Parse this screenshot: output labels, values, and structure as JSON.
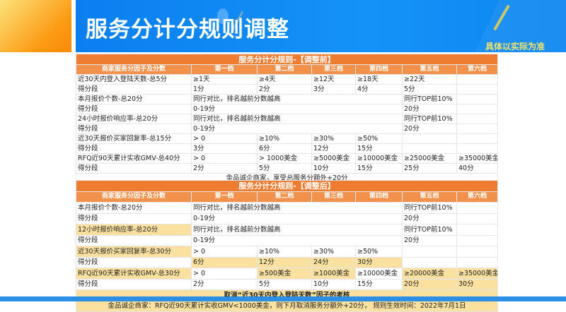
{
  "header": {
    "title": "服务分计分规则调整",
    "note": "具体以实际为准"
  },
  "columns": [
    "商家服务分因子及分数",
    "第一档",
    "第二档",
    "第三档",
    "第四档",
    "第五档",
    "第六档"
  ],
  "colors": {
    "accent": "#ee7d32",
    "banner": "#0b7ff0",
    "highlight": "#fbe1a0"
  },
  "before": {
    "title": "服务分计分规则-【调整前】",
    "rows": [
      {
        "cells": [
          "近30天内登入登陆天数-总5分",
          "≥1天",
          "≥4天",
          "≥12天",
          "≥18天",
          "≥22天",
          ""
        ]
      },
      {
        "cells": [
          "得分段",
          "1分",
          "2分",
          "3分",
          "4分",
          "5分",
          ""
        ]
      },
      {
        "cells": [
          "本月报价个数-总20分",
          "同行对比，排名越前分数越高",
          "同行TOP前10%",
          ""
        ]
      },
      {
        "cells": [
          "得分段",
          "0-19分",
          "20分",
          ""
        ]
      },
      {
        "cells": [
          "24小时报价响应率-总20分",
          "同行对比，排名越前分数越高",
          "同行TOP前10%",
          ""
        ]
      },
      {
        "cells": [
          "得分段",
          "0-19分",
          "20分",
          ""
        ]
      },
      {
        "cells": [
          "近30天报价买家回复率-总15分",
          "> 0",
          "≥10%",
          "≥30%",
          "≥50%",
          "",
          ""
        ]
      },
      {
        "cells": [
          "得分段",
          "3分",
          "6分",
          "12分",
          "15分",
          "",
          ""
        ]
      },
      {
        "cells": [
          "RFQ近90天累计实收GMV-总40分",
          "> 0",
          "> 1000美金",
          "≥5000美金",
          "≥10000美金",
          "≥25000美金",
          "≥35000美金"
        ]
      },
      {
        "cells": [
          "得分段",
          "2分",
          "5分",
          "10分",
          "15分",
          "25分",
          "40分"
        ]
      }
    ],
    "footer": "金品诚企商家，享受总服务分额外+20分"
  },
  "after": {
    "title": "服务分计分规则-【调整后】",
    "rows": [
      {
        "cells": [
          "本月报价个数-总20分",
          "同行对比，排名越前分数越高",
          "同行TOP前10%",
          ""
        ],
        "highlight": []
      },
      {
        "cells": [
          "得分段",
          "0-19分",
          "20分",
          ""
        ],
        "highlight": []
      },
      {
        "cells": [
          "12小时报价响应率-总20分",
          "同行对比，排名越前分数越高",
          "同行TOP前10%",
          ""
        ],
        "highlight": [
          0
        ]
      },
      {
        "cells": [
          "得分段",
          "0-19分",
          "20分",
          ""
        ],
        "highlight": []
      },
      {
        "cells": [
          "近30天报价买家回复率-总30分",
          "> 0",
          "≥10%",
          "≥30%",
          "≥50%",
          "",
          ""
        ],
        "highlight": [
          0
        ]
      },
      {
        "cells": [
          "得分段",
          "6分",
          "12分",
          "24分",
          "30分",
          "",
          ""
        ],
        "highlight": [
          1,
          2,
          3,
          4
        ]
      },
      {
        "cells": [
          "RFQ近90天累计实收GMV-总30分",
          "> 0",
          "≥500美金",
          "≥1000美金",
          "≥10000美金",
          "≥20000美金",
          "≥35000美金"
        ],
        "highlight": [
          0,
          2,
          3,
          5,
          6
        ]
      },
      {
        "cells": [
          "得分段",
          "2分",
          "5分",
          "10分",
          "15分",
          "20分",
          "30分"
        ],
        "highlight": [
          5,
          6
        ]
      }
    ],
    "footer_1": "取消“近30天内登入登陆天数”因子的考核",
    "footer_2": "金品诚企商家：RFQ近90天累计实收GMV<1000美金，则下月取消服务分额外+20分， 规则生效时间：2022年7月1日"
  }
}
